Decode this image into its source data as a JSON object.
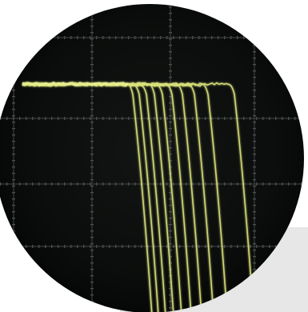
{
  "scene": {
    "subject": "oscilloscope-screen-closeup",
    "colors": {
      "page_background": "#ffffff",
      "backdrop_panel": "#e7e7e8",
      "screen_background": "#0b0d0c",
      "grid_line": "#3a3d3d",
      "grid_dot": "#4a4d4d",
      "trace": "#d8e07a",
      "trace_glow": "#eef49a"
    },
    "trace_count": 10
  }
}
